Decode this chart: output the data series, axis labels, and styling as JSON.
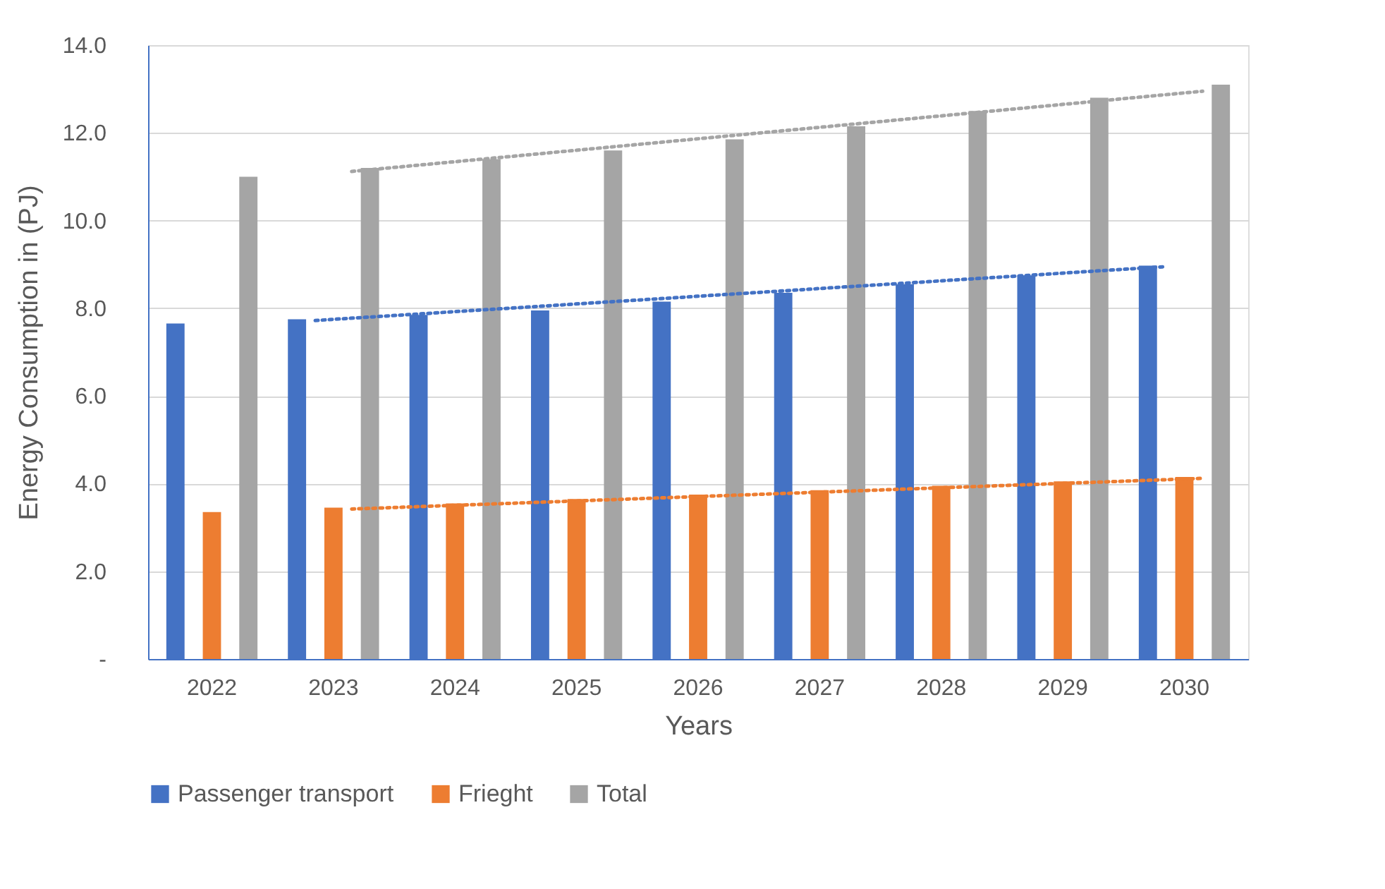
{
  "chart_data": {
    "type": "bar",
    "xlabel": "Years",
    "ylabel": "Energy Consumption in (PJ)",
    "categories": [
      "2022",
      "2023",
      "2024",
      "2025",
      "2026",
      "2027",
      "2028",
      "2029",
      "2030"
    ],
    "series": [
      {
        "name": "Passenger transport",
        "color": "#4472c4",
        "values": [
          7.65,
          7.75,
          7.85,
          7.95,
          8.15,
          8.35,
          8.55,
          8.75,
          8.97
        ]
      },
      {
        "name": "Frieght",
        "color": "#ed7d31",
        "values": [
          3.35,
          3.45,
          3.55,
          3.65,
          3.75,
          3.85,
          3.95,
          4.05,
          4.15
        ]
      },
      {
        "name": "Total",
        "color": "#a5a5a5",
        "values": [
          11.0,
          11.2,
          11.4,
          11.6,
          11.85,
          12.15,
          12.5,
          12.8,
          13.1
        ]
      },
      {
        "type": "line",
        "line_style": "dotted",
        "color": "#4472c4",
        "values": [
          null,
          7.72,
          null,
          null,
          null,
          null,
          null,
          null,
          8.95
        ]
      },
      {
        "type": "line",
        "line_style": "dotted",
        "color": "#ed7d31",
        "values": [
          null,
          3.42,
          null,
          null,
          null,
          null,
          null,
          null,
          4.12
        ]
      },
      {
        "type": "line",
        "line_style": "dotted",
        "color": "#a5a5a5",
        "values": [
          null,
          11.12,
          null,
          null,
          null,
          null,
          null,
          null,
          12.95
        ]
      }
    ],
    "ylim": [
      0,
      14
    ],
    "yticks": [
      {
        "value": 0,
        "label": "-"
      },
      {
        "value": 2,
        "label": "2.0"
      },
      {
        "value": 4,
        "label": "4.0"
      },
      {
        "value": 6,
        "label": "6.0"
      },
      {
        "value": 8,
        "label": "8.0"
      },
      {
        "value": 10,
        "label": "10.0"
      },
      {
        "value": 12,
        "label": "12.0"
      },
      {
        "value": 14,
        "label": "14.0"
      }
    ],
    "grid": "y",
    "legend": "bottom"
  }
}
